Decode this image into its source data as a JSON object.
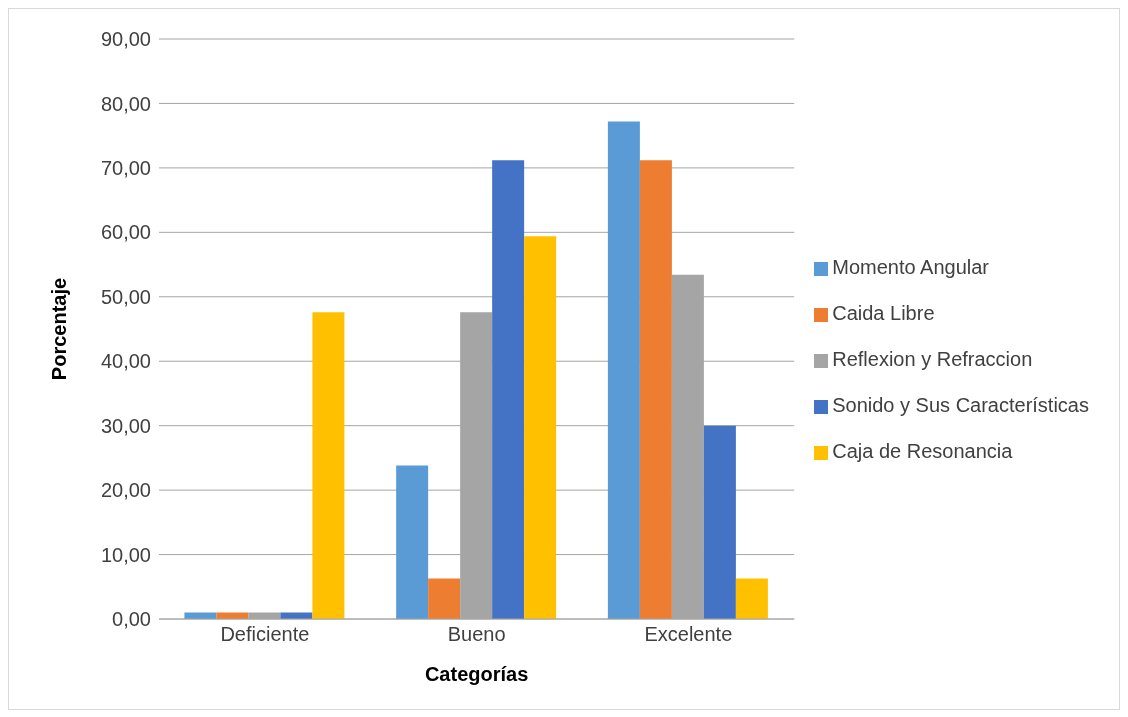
{
  "chart_data": {
    "type": "bar",
    "xlabel": "Categorías",
    "ylabel": "Porcentaje",
    "categories": [
      "Deficiente",
      "Bueno",
      "Excelente"
    ],
    "series": [
      {
        "name": "Momento Angular",
        "color": "#5b9bd5",
        "values": [
          1,
          23.8,
          77.2
        ]
      },
      {
        "name": "Caida Libre",
        "color": "#ed7d31",
        "values": [
          1,
          6.3,
          71.2
        ]
      },
      {
        "name": "Reflexion y Refraccion",
        "color": "#a5a5a5",
        "values": [
          1,
          47.6,
          53.4
        ]
      },
      {
        "name": "Sonido y Sus Características",
        "color": "#4472c4",
        "values": [
          1,
          71.2,
          30
        ]
      },
      {
        "name": "Caja de Resonancia",
        "color": "#ffc000",
        "values": [
          47.6,
          59.4,
          6.3
        ]
      }
    ],
    "ylim": [
      0,
      90
    ],
    "yticks": [
      {
        "value": 0,
        "label": "0,00"
      },
      {
        "value": 10,
        "label": "10,00"
      },
      {
        "value": 20,
        "label": "20,00"
      },
      {
        "value": 30,
        "label": "30,00"
      },
      {
        "value": 40,
        "label": "40,00"
      },
      {
        "value": 50,
        "label": "50,00"
      },
      {
        "value": 60,
        "label": "60,00"
      },
      {
        "value": 70,
        "label": "70,00"
      },
      {
        "value": 80,
        "label": "80,00"
      },
      {
        "value": 90,
        "label": "90,00"
      }
    ],
    "grid": "y",
    "legend": "right"
  }
}
